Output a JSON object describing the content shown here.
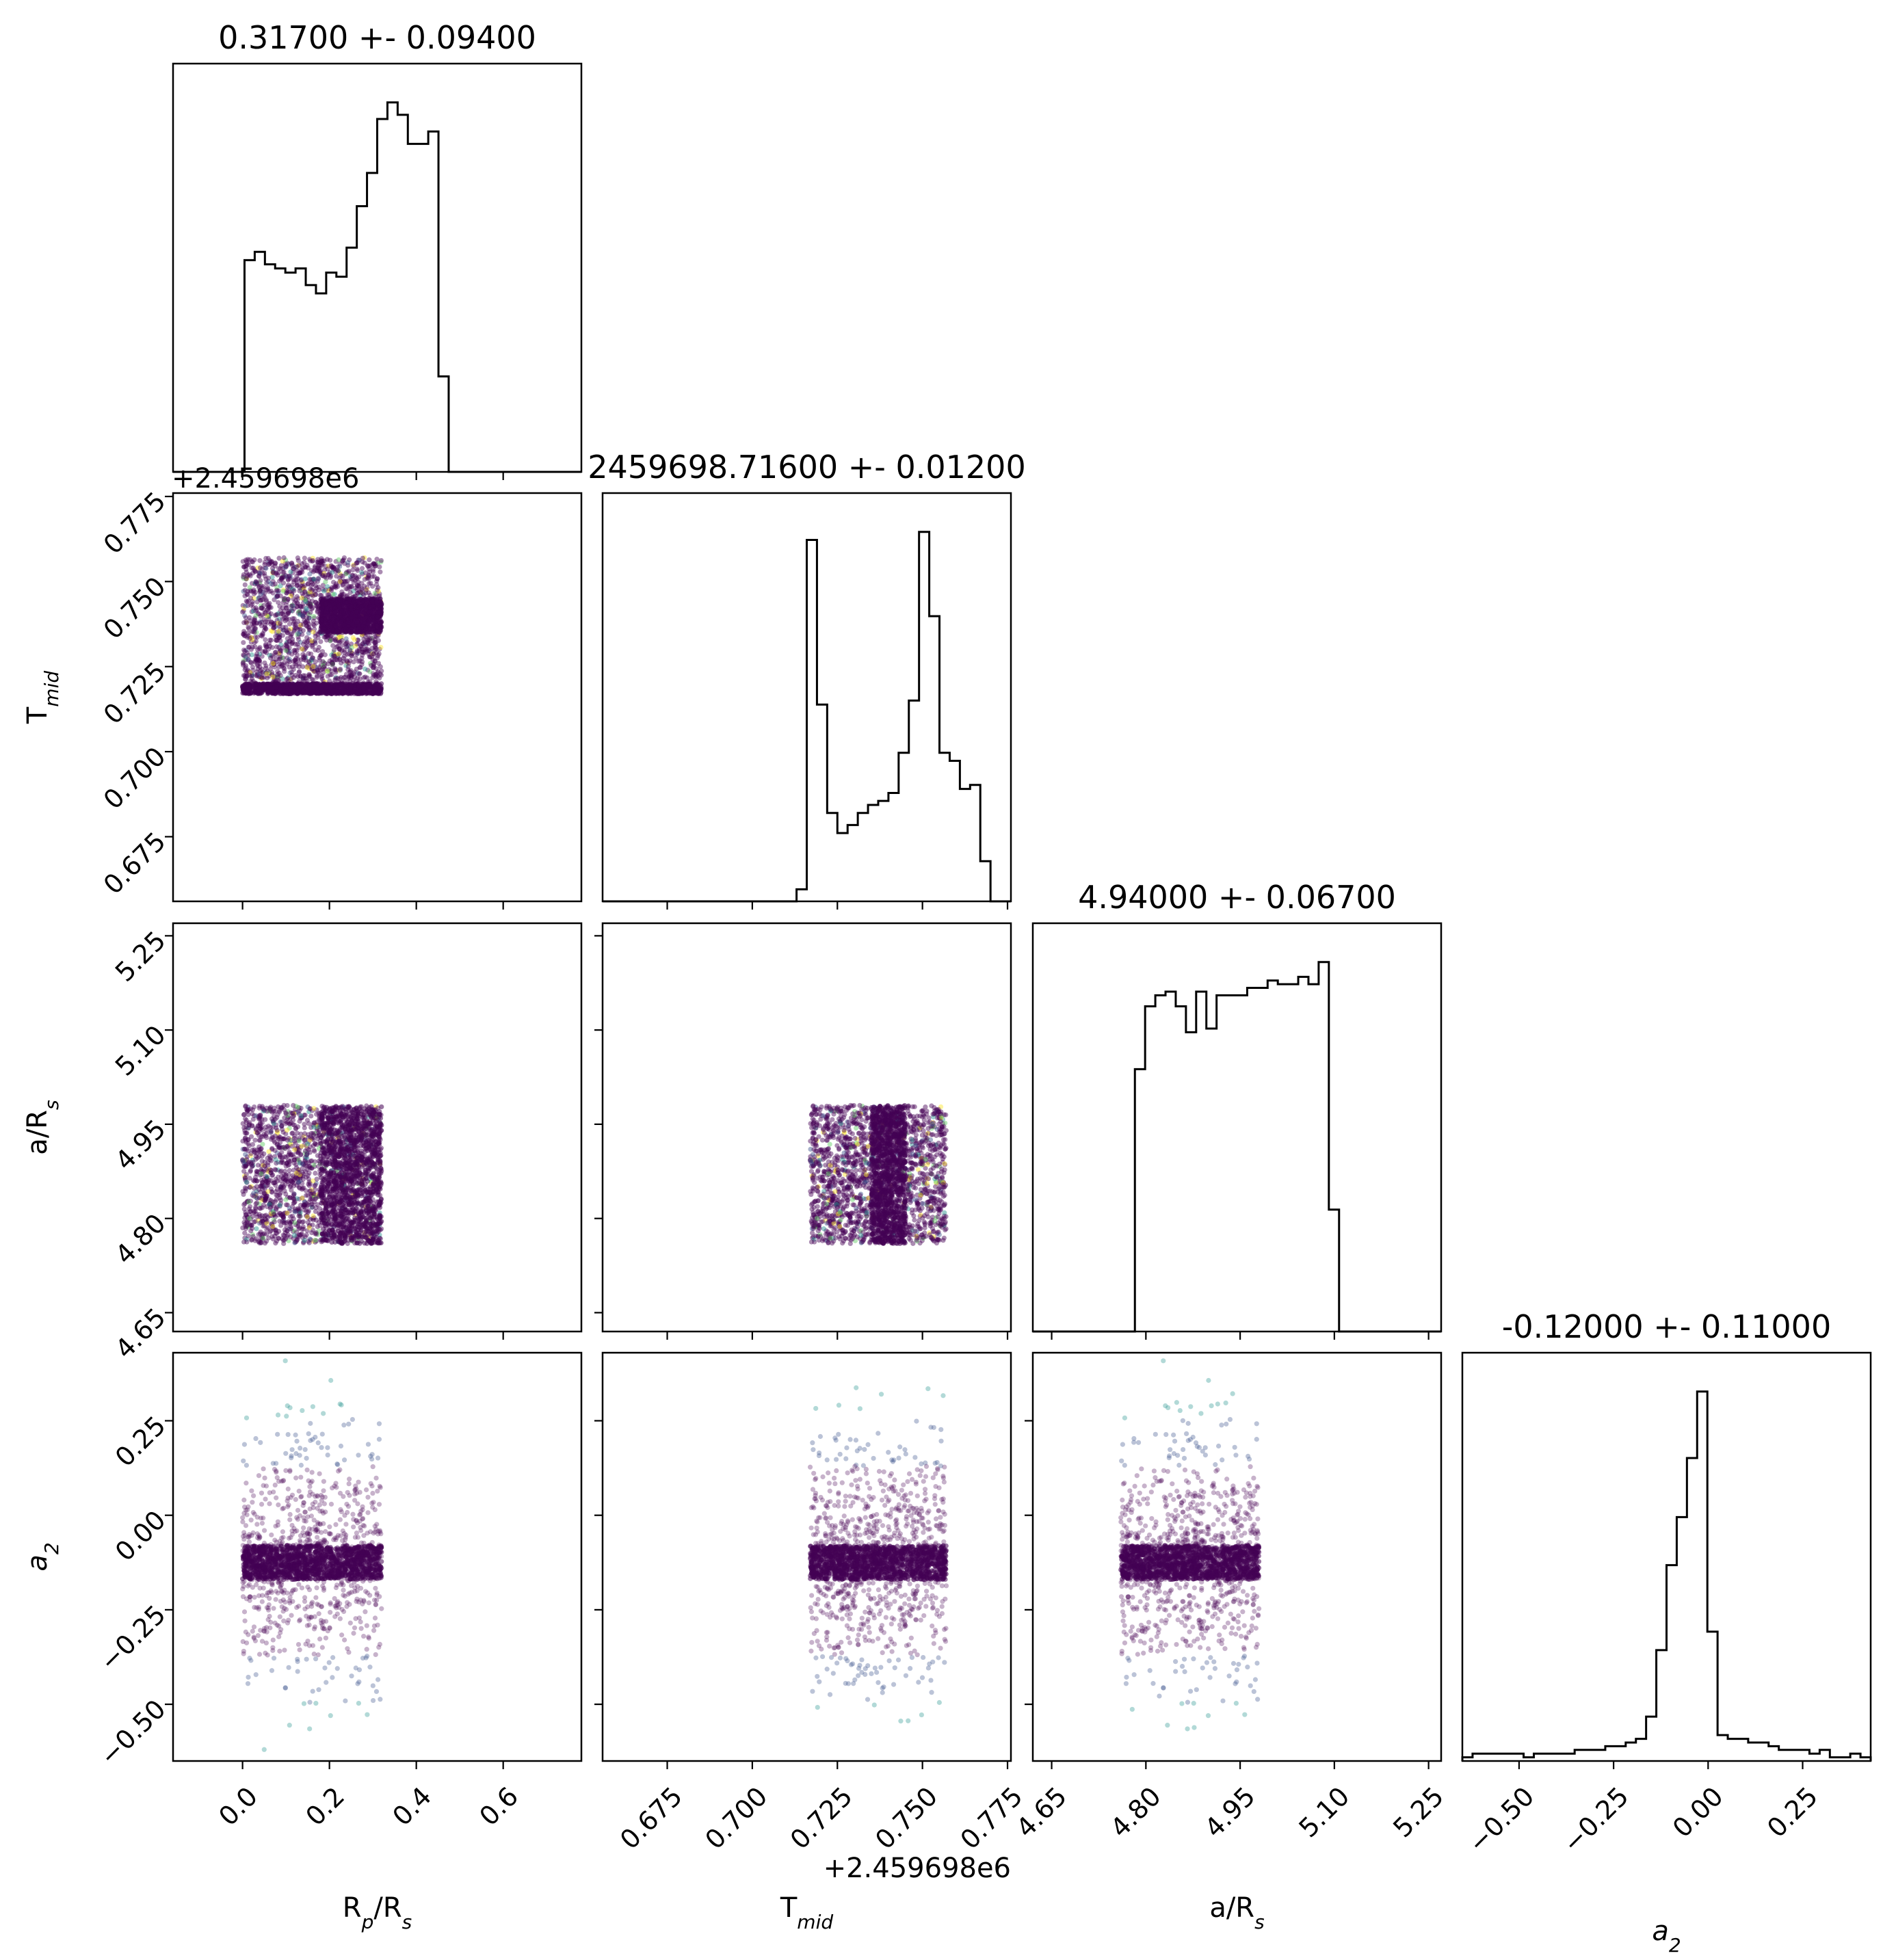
{
  "chart_data": {
    "type": "scatter",
    "subtype": "corner-plot",
    "parameters": [
      {
        "label": "R",
        "sub": "p",
        "label_rest": "/R",
        "sub2": "s",
        "title": "0.31700 +- 0.09400",
        "range": [
          -0.16,
          0.78
        ],
        "ticks": [
          "0.0",
          "0.2",
          "0.4",
          "0.6"
        ],
        "tick_values": [
          0.0,
          0.2,
          0.4,
          0.6
        ]
      },
      {
        "label": "T",
        "sub": "mid",
        "label_rest": "",
        "sub2": "",
        "title": "2459698.71600 +- 0.01200",
        "offset": "+2.459698e6",
        "range": [
          0.656,
          0.776
        ],
        "ticks": [
          "0.675",
          "0.700",
          "0.725",
          "0.750",
          "0.775"
        ],
        "tick_values": [
          0.675,
          0.7,
          0.725,
          0.75,
          0.775
        ]
      },
      {
        "label": "a/R",
        "sub": "",
        "label_rest": "",
        "sub2": "s",
        "title": "4.94000 +- 0.06700",
        "range": [
          4.62,
          5.27
        ],
        "ticks": [
          "4.65",
          "4.80",
          "4.95",
          "5.10",
          "5.25"
        ],
        "tick_values": [
          4.65,
          4.8,
          4.95,
          5.1,
          5.25
        ]
      },
      {
        "label": "a",
        "sub": "2",
        "label_rest": "",
        "sub2": "",
        "italic": true,
        "title": "-0.12000 +- 0.11000",
        "range": [
          -0.65,
          0.43
        ],
        "ticks": [
          "−0.50",
          "−0.25",
          "0.00",
          "0.25"
        ],
        "tick_values": [
          -0.5,
          -0.25,
          0.0,
          0.25
        ]
      }
    ],
    "histograms": [
      {
        "param": 0,
        "bins": 40,
        "counts": [
          0,
          0,
          0,
          0,
          0,
          0,
          0,
          51,
          53,
          50,
          49,
          48,
          49,
          45,
          43,
          48,
          47,
          54,
          64,
          72,
          85,
          89,
          86,
          79,
          79,
          82,
          23,
          0,
          0,
          0,
          0,
          0,
          0,
          0,
          0,
          0,
          0,
          0,
          0,
          0
        ]
      },
      {
        "param": 1,
        "bins": 40,
        "counts": [
          0,
          0,
          0,
          0,
          0,
          0,
          0,
          0,
          0,
          0,
          0,
          0,
          0,
          0,
          0,
          0,
          0,
          0,
          0,
          3,
          90,
          49,
          22,
          17,
          19,
          22,
          24,
          25,
          27,
          37,
          50,
          92,
          71,
          37,
          35,
          28,
          29,
          10,
          0,
          0
        ]
      },
      {
        "param": 2,
        "bins": 40,
        "counts": [
          0,
          0,
          0,
          0,
          0,
          0,
          0,
          0,
          0,
          0,
          71,
          88,
          91,
          92,
          88,
          81,
          92,
          82,
          91,
          91,
          91,
          93,
          93,
          95,
          94,
          94,
          96,
          94,
          100,
          33,
          0,
          0,
          0,
          0,
          0,
          0,
          0,
          0,
          0,
          0
        ]
      },
      {
        "param": 3,
        "bins": 40,
        "counts": [
          1,
          2,
          2,
          2,
          2,
          2,
          1,
          2,
          2,
          2,
          2,
          3,
          3,
          3,
          4,
          4,
          5,
          6,
          12,
          30,
          53,
          66,
          82,
          100,
          35,
          7,
          6,
          6,
          5,
          5,
          4,
          3,
          3,
          3,
          2,
          3,
          1,
          1,
          2,
          1
        ]
      }
    ],
    "scatter_panels": [
      {
        "x": 0,
        "y": 1,
        "x_extent": [
          0.0,
          0.32
        ],
        "y_extent": [
          0.717,
          0.757
        ],
        "dense_regions": [
          {
            "x": [
              0.18,
              0.32
            ],
            "y": [
              0.735,
              0.745
            ]
          },
          {
            "x": [
              0.0,
              0.32
            ],
            "y": [
              0.717,
              0.72
            ]
          }
        ]
      },
      {
        "x": 0,
        "y": 2,
        "x_extent": [
          0.0,
          0.32
        ],
        "y_extent": [
          4.76,
          4.98
        ],
        "dense_regions": [
          {
            "x": [
              0.18,
              0.32
            ],
            "y": [
              4.76,
              4.98
            ]
          }
        ]
      },
      {
        "x": 1,
        "y": 2,
        "x_extent": [
          0.717,
          0.757
        ],
        "y_extent": [
          4.76,
          4.98
        ],
        "dense_regions": [
          {
            "x": [
              0.735,
              0.745
            ],
            "y": [
              4.76,
              4.98
            ]
          }
        ]
      },
      {
        "x": 0,
        "y": 3,
        "x_extent": [
          0.0,
          0.32
        ],
        "y_extent": [
          -0.65,
          0.43
        ],
        "dense_regions": [
          {
            "x": [
              0.0,
              0.32
            ],
            "y": [
              -0.17,
              -0.08
            ]
          }
        ]
      },
      {
        "x": 1,
        "y": 3,
        "x_extent": [
          0.717,
          0.757
        ],
        "y_extent": [
          -0.65,
          0.43
        ],
        "dense_regions": [
          {
            "x": [
              0.717,
              0.757
            ],
            "y": [
              -0.17,
              -0.08
            ]
          }
        ]
      },
      {
        "x": 2,
        "y": 3,
        "x_extent": [
          4.76,
          4.98
        ],
        "y_extent": [
          -0.65,
          0.43
        ],
        "dense_regions": [
          {
            "x": [
              4.76,
              4.98
            ],
            "y": [
              -0.17,
              -0.08
            ]
          }
        ]
      }
    ],
    "point_colors": [
      "#440154",
      "#3b528b",
      "#21918c",
      "#5ec962",
      "#fde725"
    ],
    "grid": false,
    "legend": "none"
  }
}
